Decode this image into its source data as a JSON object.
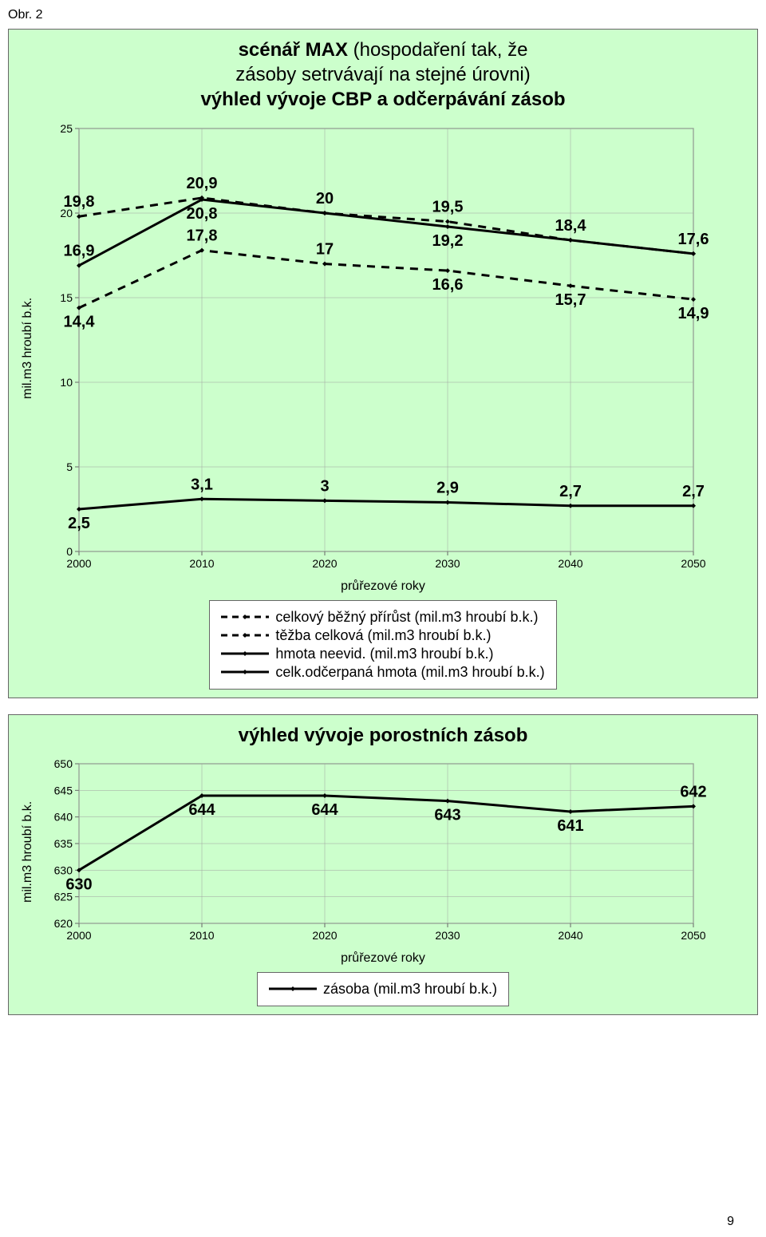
{
  "page_number": "9",
  "figure_label": "Obr. 2",
  "chart1": {
    "type": "line",
    "title_bold": "scénář MAX",
    "title_rest": " (hospodaření tak, že",
    "title_line2": "zásoby setrvávají na stejné úrovni)",
    "title_line3": "výhled vývoje CBP a odčerpávání zásob",
    "x_label": "průřezové roky",
    "y_label": "mil.m3 hroubí b.k.",
    "x_ticks": [
      "2000",
      "2010",
      "2020",
      "2030",
      "2040",
      "2050"
    ],
    "y_ticks": [
      0,
      5,
      10,
      15,
      20,
      25
    ],
    "ylim": [
      0,
      25
    ],
    "background": "#ccffcc",
    "plot_bg": "#ccffcc",
    "grid_color": "#a0a0a0",
    "axis_color": "#666666",
    "label_color": "#000000",
    "label_fontsize_pt": 16,
    "marker_size": 6,
    "series": [
      {
        "name": "celkový běžný přírůst (mil.m3 hroubí b.k.)",
        "color": "#000000",
        "dashed": true,
        "width": 3,
        "labels": [
          "19,8",
          "20,9",
          "20",
          "19,5",
          "18,4",
          "17,6"
        ],
        "values": [
          19.8,
          20.9,
          20,
          19.5,
          18.4,
          17.6
        ],
        "label_pos": [
          "above",
          "above",
          "above",
          "above",
          "above",
          "above"
        ]
      },
      {
        "name": "těžba celková (mil.m3 hroubí b.k.)",
        "color": "#000000",
        "dashed": true,
        "width": 3,
        "labels": [
          "14,4",
          "17,8",
          "17",
          "16,6",
          "15,7",
          "14,9"
        ],
        "values": [
          14.4,
          17.8,
          17,
          16.6,
          15.7,
          14.9
        ],
        "label_pos": [
          "below",
          "above",
          "above",
          "below",
          "below",
          "below"
        ]
      },
      {
        "name": "hmota neevid. (mil.m3 hroubí b.k.)",
        "color": "#000000",
        "dashed": false,
        "width": 3,
        "labels": [
          "16,9",
          "20,8",
          "",
          "19,2",
          "",
          ""
        ],
        "values": [
          16.9,
          20.8,
          20,
          19.2,
          18.4,
          17.6
        ],
        "label_pos": [
          "above",
          "below",
          "",
          "below",
          "",
          ""
        ]
      },
      {
        "name": "celk.odčerpaná hmota (mil.m3 hroubí b.k.)",
        "color": "#000000",
        "dashed": false,
        "width": 3,
        "labels": [
          "2,5",
          "3,1",
          "3",
          "2,9",
          "2,7",
          "2,7"
        ],
        "values": [
          2.5,
          3.1,
          3,
          2.9,
          2.7,
          2.7
        ],
        "label_pos": [
          "below",
          "above",
          "above",
          "above",
          "above",
          "above"
        ]
      }
    ],
    "legend_items": [
      "celkový běžný přírůst (mil.m3 hroubí b.k.)",
      "těžba celková (mil.m3 hroubí b.k.)",
      "hmota neevid. (mil.m3 hroubí b.k.)",
      "celk.odčerpaná hmota (mil.m3 hroubí b.k.)"
    ]
  },
  "chart2": {
    "type": "line",
    "title": "výhled vývoje porostních zásob",
    "x_label": "průřezové roky",
    "y_label": "mil.m3 hroubí b.k.",
    "x_ticks": [
      "2000",
      "2010",
      "2020",
      "2030",
      "2040",
      "2050"
    ],
    "y_ticks": [
      620,
      625,
      630,
      635,
      640,
      645,
      650
    ],
    "ylim": [
      620,
      650
    ],
    "background": "#ccffcc",
    "grid_color": "#a0a0a0",
    "axis_color": "#666666",
    "label_fontsize_pt": 16,
    "marker_size": 6,
    "series": [
      {
        "name": "zásoba (mil.m3 hroubí b.k.)",
        "color": "#000000",
        "dashed": false,
        "width": 3,
        "labels": [
          "630",
          "644",
          "644",
          "643",
          "641",
          "642"
        ],
        "values": [
          630,
          644,
          644,
          643,
          641,
          642
        ],
        "label_pos": [
          "below",
          "below",
          "below",
          "below",
          "below",
          "above"
        ]
      }
    ],
    "legend_items": [
      "zásoba (mil.m3 hroubí b.k.)"
    ]
  }
}
